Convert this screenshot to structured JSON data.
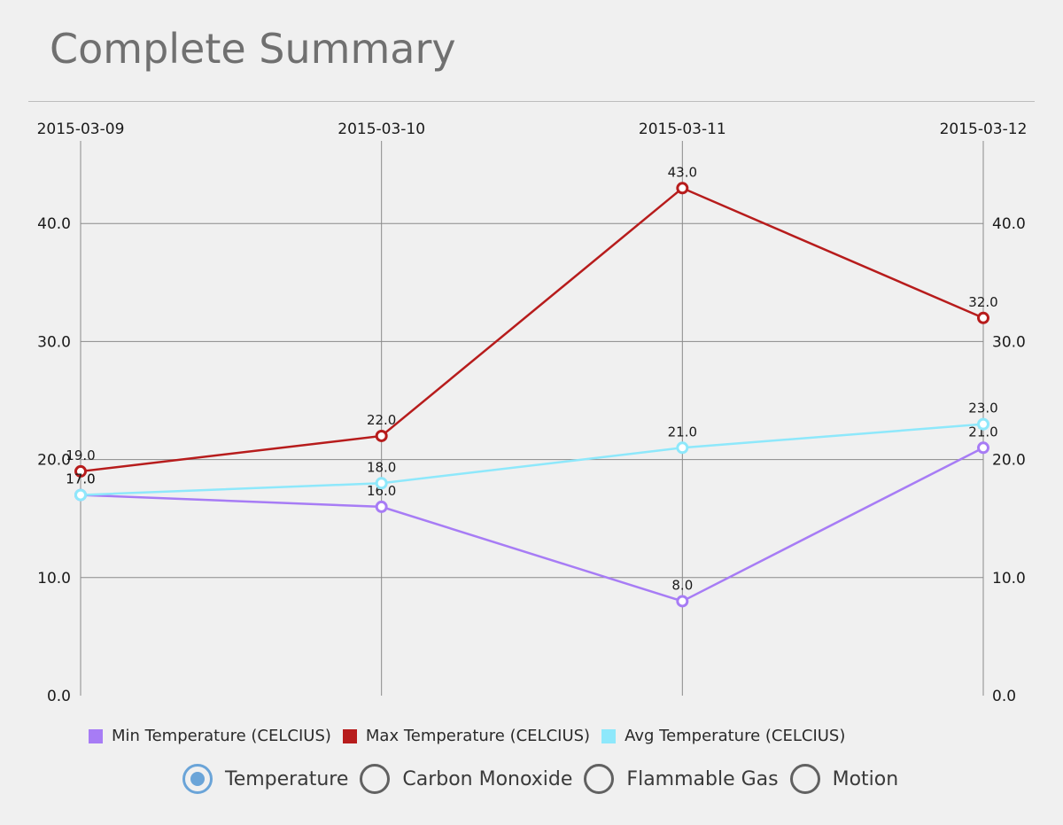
{
  "header": {
    "title": "Complete Summary"
  },
  "chart_data": {
    "type": "line",
    "title": "",
    "xlabel": "",
    "ylabel": "",
    "categories": [
      "2015-03-09",
      "2015-03-10",
      "2015-03-11",
      "2015-03-12"
    ],
    "ylim": [
      0,
      47
    ],
    "y_ticks": [
      "0.0",
      "10.0",
      "20.0",
      "30.0",
      "40.0"
    ],
    "y_tick_values": [
      0,
      10,
      20,
      30,
      40
    ],
    "grid": true,
    "legend_position": "bottom-left",
    "series": [
      {
        "name": "Min Temperature (CELCIUS)",
        "color": "#a77cf5",
        "values": [
          17,
          16,
          8,
          21
        ],
        "labels": [
          "17.0",
          "16.0",
          "8.0",
          "21.0"
        ]
      },
      {
        "name": "Max Temperature (CELCIUS)",
        "color": "#b71c1c",
        "values": [
          19,
          22,
          43,
          32
        ],
        "labels": [
          "19.0",
          "22.0",
          "43.0",
          "32.0"
        ]
      },
      {
        "name": "Avg Temperature (CELCIUS)",
        "color": "#8ee8fb",
        "values": [
          17,
          18,
          21,
          23
        ],
        "labels": [
          "17.0",
          "18.0",
          "21.0",
          "23.0"
        ]
      }
    ]
  },
  "selector": {
    "options": [
      {
        "label": "Temperature",
        "checked": true
      },
      {
        "label": "Carbon Monoxide",
        "checked": false
      },
      {
        "label": "Flammable Gas",
        "checked": false
      },
      {
        "label": "Motion",
        "checked": false
      }
    ]
  }
}
